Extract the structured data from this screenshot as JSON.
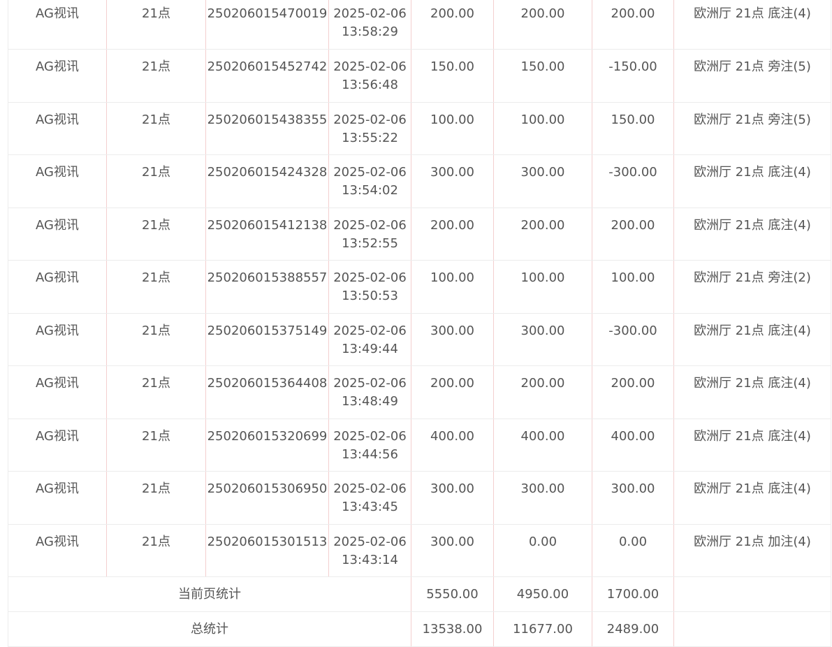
{
  "rows": [
    {
      "platform": "AG视讯",
      "game": "21点",
      "order_id": "250206015470019",
      "time": "2025-02-06 13:58:29",
      "bet": "200.00",
      "valid_bet": "200.00",
      "win_loss": "200.00",
      "detail": "欧洲厅 21点 底注(4)"
    },
    {
      "platform": "AG视讯",
      "game": "21点",
      "order_id": "250206015452742",
      "time": "2025-02-06 13:56:48",
      "bet": "150.00",
      "valid_bet": "150.00",
      "win_loss": "-150.00",
      "detail": "欧洲厅 21点 旁注(5)"
    },
    {
      "platform": "AG视讯",
      "game": "21点",
      "order_id": "250206015438355",
      "time": "2025-02-06 13:55:22",
      "bet": "100.00",
      "valid_bet": "100.00",
      "win_loss": "150.00",
      "detail": "欧洲厅 21点 旁注(5)"
    },
    {
      "platform": "AG视讯",
      "game": "21点",
      "order_id": "250206015424328",
      "time": "2025-02-06 13:54:02",
      "bet": "300.00",
      "valid_bet": "300.00",
      "win_loss": "-300.00",
      "detail": "欧洲厅 21点 底注(4)"
    },
    {
      "platform": "AG视讯",
      "game": "21点",
      "order_id": "250206015412138",
      "time": "2025-02-06 13:52:55",
      "bet": "200.00",
      "valid_bet": "200.00",
      "win_loss": "200.00",
      "detail": "欧洲厅 21点 底注(4)"
    },
    {
      "platform": "AG视讯",
      "game": "21点",
      "order_id": "250206015388557",
      "time": "2025-02-06 13:50:53",
      "bet": "100.00",
      "valid_bet": "100.00",
      "win_loss": "100.00",
      "detail": "欧洲厅 21点 旁注(2)"
    },
    {
      "platform": "AG视讯",
      "game": "21点",
      "order_id": "250206015375149",
      "time": "2025-02-06 13:49:44",
      "bet": "300.00",
      "valid_bet": "300.00",
      "win_loss": "-300.00",
      "detail": "欧洲厅 21点 底注(4)"
    },
    {
      "platform": "AG视讯",
      "game": "21点",
      "order_id": "250206015364408",
      "time": "2025-02-06 13:48:49",
      "bet": "200.00",
      "valid_bet": "200.00",
      "win_loss": "200.00",
      "detail": "欧洲厅 21点 底注(4)"
    },
    {
      "platform": "AG视讯",
      "game": "21点",
      "order_id": "250206015320699",
      "time": "2025-02-06 13:44:56",
      "bet": "400.00",
      "valid_bet": "400.00",
      "win_loss": "400.00",
      "detail": "欧洲厅 21点 底注(4)"
    },
    {
      "platform": "AG视讯",
      "game": "21点",
      "order_id": "250206015306950",
      "time": "2025-02-06 13:43:45",
      "bet": "300.00",
      "valid_bet": "300.00",
      "win_loss": "300.00",
      "detail": "欧洲厅 21点 底注(4)"
    },
    {
      "platform": "AG视讯",
      "game": "21点",
      "order_id": "250206015301513",
      "time": "2025-02-06 13:43:14",
      "bet": "300.00",
      "valid_bet": "0.00",
      "win_loss": "0.00",
      "detail": "欧洲厅 21点 加注(4)"
    }
  ],
  "summary": [
    {
      "label": "当前页统计",
      "bet": "5550.00",
      "valid_bet": "4950.00",
      "win_loss": "1700.00"
    },
    {
      "label": "总统计",
      "bet": "13538.00",
      "valid_bet": "11677.00",
      "win_loss": "2489.00"
    }
  ]
}
